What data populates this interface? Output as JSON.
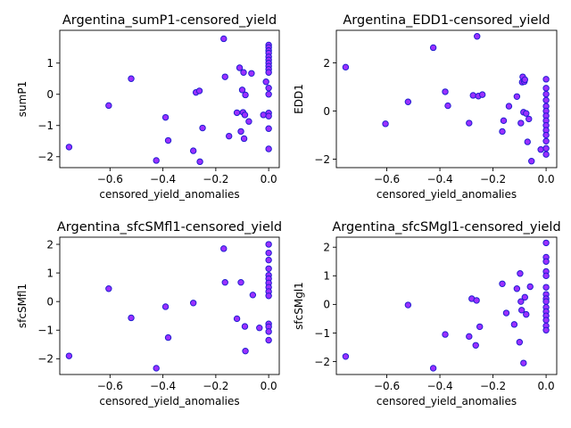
{
  "chart_data": [
    {
      "type": "scatter",
      "title": "Argentina_sumP1-censored_yield",
      "xlabel": "censored_yield_anomalies",
      "ylabel": "sumP1",
      "xlim": [
        -0.79,
        0.04
      ],
      "ylim": [
        -2.35,
        2.05
      ],
      "xticks": [
        -0.6,
        -0.4,
        -0.2,
        0.0
      ],
      "xtick_labels": [
        "−0.6",
        "−0.4",
        "−0.2",
        "0.0"
      ],
      "yticks": [
        -2,
        -1,
        0,
        1
      ],
      "ytick_labels": [
        "−2",
        "−1",
        "0",
        "1"
      ],
      "marker_fill": "#9b30ff",
      "marker_edge": "#1f1fd0",
      "points": [
        [
          -0.755,
          -1.69
        ],
        [
          -0.605,
          -0.36
        ],
        [
          -0.52,
          0.5
        ],
        [
          -0.425,
          -2.12
        ],
        [
          -0.39,
          -0.74
        ],
        [
          -0.38,
          -1.48
        ],
        [
          -0.285,
          -1.81
        ],
        [
          -0.275,
          0.06
        ],
        [
          -0.262,
          0.11
        ],
        [
          -0.26,
          -2.16
        ],
        [
          -0.25,
          -1.08
        ],
        [
          -0.17,
          1.78
        ],
        [
          -0.165,
          0.56
        ],
        [
          -0.15,
          -1.34
        ],
        [
          -0.12,
          -0.59
        ],
        [
          -0.11,
          0.85
        ],
        [
          -0.105,
          -1.19
        ],
        [
          -0.1,
          0.14
        ],
        [
          -0.097,
          -0.58
        ],
        [
          -0.095,
          0.7
        ],
        [
          -0.093,
          -1.42
        ],
        [
          -0.09,
          -0.66
        ],
        [
          -0.088,
          -0.02
        ],
        [
          -0.075,
          -0.87
        ],
        [
          -0.065,
          0.67
        ],
        [
          -0.02,
          -0.66
        ],
        [
          -0.01,
          0.4
        ],
        [
          0.0,
          1.58
        ],
        [
          0.0,
          1.5
        ],
        [
          0.0,
          1.4
        ],
        [
          0.0,
          1.32
        ],
        [
          0.0,
          1.2
        ],
        [
          0.0,
          1.1
        ],
        [
          0.0,
          1.0
        ],
        [
          0.0,
          0.9
        ],
        [
          0.0,
          0.8
        ],
        [
          0.0,
          0.7
        ],
        [
          0.0,
          0.2
        ],
        [
          0.0,
          0.0
        ],
        [
          0.0,
          -0.6
        ],
        [
          0.0,
          -0.7
        ],
        [
          0.0,
          -1.1
        ],
        [
          0.0,
          -1.75
        ]
      ]
    },
    {
      "type": "scatter",
      "title": "Argentina_EDD1-censored_yield",
      "xlabel": "censored_yield_anomalies",
      "ylabel": "EDD1",
      "xlim": [
        -0.79,
        0.04
      ],
      "ylim": [
        -2.35,
        3.35
      ],
      "xticks": [
        -0.6,
        -0.4,
        -0.2,
        0.0
      ],
      "xtick_labels": [
        "−0.6",
        "−0.4",
        "−0.2",
        "0.0"
      ],
      "yticks": [
        -2,
        0,
        2
      ],
      "ytick_labels": [
        "−2",
        "0",
        "2"
      ],
      "marker_fill": "#9b30ff",
      "marker_edge": "#1f1fd0",
      "points": [
        [
          -0.755,
          1.82
        ],
        [
          -0.605,
          -0.53
        ],
        [
          -0.52,
          0.38
        ],
        [
          -0.425,
          2.63
        ],
        [
          -0.38,
          0.8
        ],
        [
          -0.37,
          0.22
        ],
        [
          -0.29,
          -0.5
        ],
        [
          -0.275,
          0.65
        ],
        [
          -0.26,
          3.1
        ],
        [
          -0.255,
          0.62
        ],
        [
          -0.24,
          0.68
        ],
        [
          -0.165,
          -0.85
        ],
        [
          -0.16,
          -0.4
        ],
        [
          -0.14,
          0.2
        ],
        [
          -0.11,
          0.6
        ],
        [
          -0.095,
          -0.5
        ],
        [
          -0.09,
          1.2
        ],
        [
          -0.088,
          1.42
        ],
        [
          -0.085,
          -0.05
        ],
        [
          -0.082,
          1.22
        ],
        [
          -0.08,
          1.3
        ],
        [
          -0.075,
          -0.1
        ],
        [
          -0.07,
          -1.28
        ],
        [
          -0.065,
          -0.33
        ],
        [
          -0.055,
          -2.08
        ],
        [
          -0.02,
          -1.6
        ],
        [
          0.0,
          1.32
        ],
        [
          0.0,
          0.95
        ],
        [
          0.0,
          0.7
        ],
        [
          0.0,
          0.45
        ],
        [
          0.0,
          0.2
        ],
        [
          0.0,
          0.0
        ],
        [
          0.0,
          -0.2
        ],
        [
          0.0,
          -0.4
        ],
        [
          0.0,
          -0.6
        ],
        [
          0.0,
          -0.8
        ],
        [
          0.0,
          -1.0
        ],
        [
          0.0,
          -1.25
        ],
        [
          0.0,
          -1.55
        ],
        [
          0.0,
          -1.8
        ]
      ]
    },
    {
      "type": "scatter",
      "title": "Argentina_sfcSMfl1-censored_yield",
      "xlabel": "censored_yield_anomalies",
      "ylabel": "sfcSMfl1",
      "xlim": [
        -0.79,
        0.04
      ],
      "ylim": [
        -2.55,
        2.25
      ],
      "xticks": [
        -0.6,
        -0.4,
        -0.2,
        0.0
      ],
      "xtick_labels": [
        "−0.6",
        "−0.4",
        "−0.2",
        "0.0"
      ],
      "yticks": [
        -2,
        -1,
        0,
        1,
        2
      ],
      "ytick_labels": [
        "−2",
        "−1",
        "0",
        "1",
        "2"
      ],
      "marker_fill": "#9b30ff",
      "marker_edge": "#1f1fd0",
      "points": [
        [
          -0.755,
          -1.9
        ],
        [
          -0.605,
          0.45
        ],
        [
          -0.52,
          -0.57
        ],
        [
          -0.425,
          -2.33
        ],
        [
          -0.39,
          -0.18
        ],
        [
          -0.38,
          -1.26
        ],
        [
          -0.285,
          -0.05
        ],
        [
          -0.17,
          1.85
        ],
        [
          -0.165,
          0.67
        ],
        [
          -0.12,
          -0.6
        ],
        [
          -0.105,
          0.67
        ],
        [
          -0.09,
          -0.87
        ],
        [
          -0.088,
          -1.73
        ],
        [
          -0.06,
          0.23
        ],
        [
          -0.035,
          -0.92
        ],
        [
          0.0,
          2.0
        ],
        [
          0.0,
          1.7
        ],
        [
          0.0,
          1.45
        ],
        [
          0.0,
          1.15
        ],
        [
          0.0,
          0.92
        ],
        [
          0.0,
          0.8
        ],
        [
          0.0,
          0.65
        ],
        [
          0.0,
          0.5
        ],
        [
          0.0,
          0.35
        ],
        [
          0.0,
          0.2
        ],
        [
          0.0,
          -0.78
        ],
        [
          0.0,
          -0.88
        ],
        [
          0.0,
          -1.05
        ],
        [
          0.0,
          -1.35
        ]
      ]
    },
    {
      "type": "scatter",
      "title": "Argentina_sfcSMgl1-censored_yield",
      "xlabel": "censored_yield_anomalies",
      "ylabel": "sfcSMgl1",
      "xlim": [
        -0.79,
        0.04
      ],
      "ylim": [
        -2.45,
        2.35
      ],
      "xticks": [
        -0.6,
        -0.4,
        -0.2,
        0.0
      ],
      "xtick_labels": [
        "−0.6",
        "−0.4",
        "−0.2",
        "0.0"
      ],
      "yticks": [
        -2,
        -1,
        0,
        1,
        2
      ],
      "ytick_labels": [
        "−2",
        "−1",
        "0",
        "1",
        "2"
      ],
      "marker_fill": "#9b30ff",
      "marker_edge": "#1f1fd0",
      "points": [
        [
          -0.755,
          -1.82
        ],
        [
          -0.52,
          -0.02
        ],
        [
          -0.425,
          -2.23
        ],
        [
          -0.38,
          -1.05
        ],
        [
          -0.29,
          -1.12
        ],
        [
          -0.28,
          0.2
        ],
        [
          -0.265,
          -1.43
        ],
        [
          -0.262,
          0.14
        ],
        [
          -0.25,
          -0.78
        ],
        [
          -0.165,
          0.72
        ],
        [
          -0.15,
          -0.3
        ],
        [
          -0.12,
          -0.7
        ],
        [
          -0.11,
          0.55
        ],
        [
          -0.1,
          -1.32
        ],
        [
          -0.098,
          1.08
        ],
        [
          -0.095,
          0.1
        ],
        [
          -0.092,
          -0.2
        ],
        [
          -0.085,
          -2.05
        ],
        [
          -0.08,
          0.25
        ],
        [
          -0.075,
          -0.35
        ],
        [
          -0.06,
          0.62
        ],
        [
          0.0,
          2.15
        ],
        [
          0.0,
          1.65
        ],
        [
          0.0,
          1.5
        ],
        [
          0.0,
          1.15
        ],
        [
          0.0,
          1.0
        ],
        [
          0.0,
          0.6
        ],
        [
          0.0,
          0.35
        ],
        [
          0.0,
          0.2
        ],
        [
          0.0,
          0.1
        ],
        [
          0.0,
          -0.1
        ],
        [
          0.0,
          -0.25
        ],
        [
          0.0,
          -0.4
        ],
        [
          0.0,
          -0.55
        ],
        [
          0.0,
          -0.75
        ],
        [
          0.0,
          -0.9
        ]
      ]
    }
  ]
}
